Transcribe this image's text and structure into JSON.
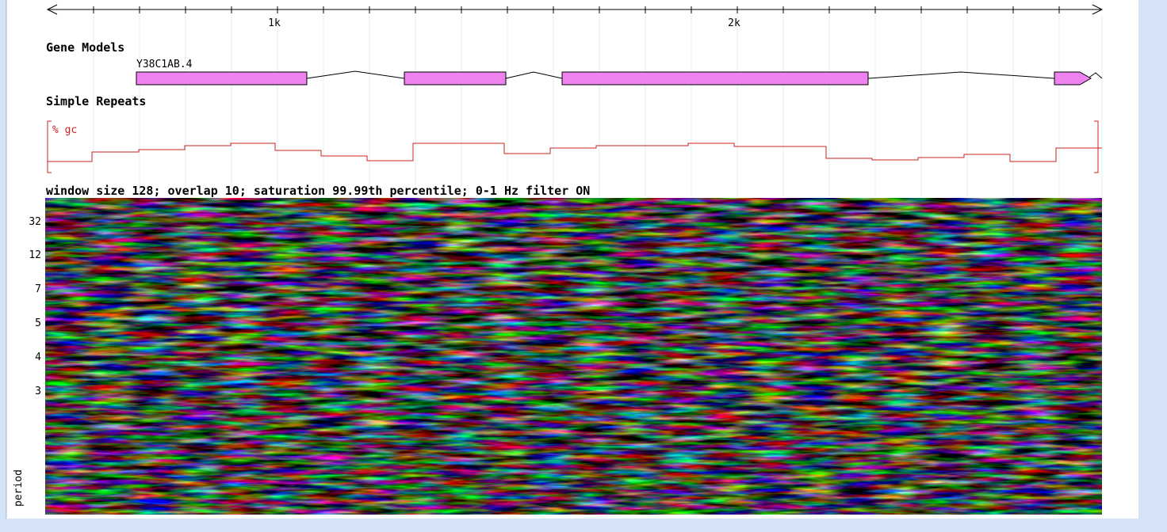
{
  "ruler": {
    "tick_labels": [
      "1k",
      "2k"
    ]
  },
  "tracks": {
    "gene_models": {
      "title": "Gene Models",
      "gene_label": "Y38C1AB.4"
    },
    "simple_repeats": {
      "title": "Simple Repeats",
      "gc_label": "% gc"
    }
  },
  "spectrogram": {
    "caption": "window size 128; overlap 10; saturation 99.99th percentile; 0-1 Hz filter ON",
    "period_labels": [
      "32",
      "12",
      "7",
      "5",
      "4",
      "3"
    ],
    "axis_label": "period"
  }
}
